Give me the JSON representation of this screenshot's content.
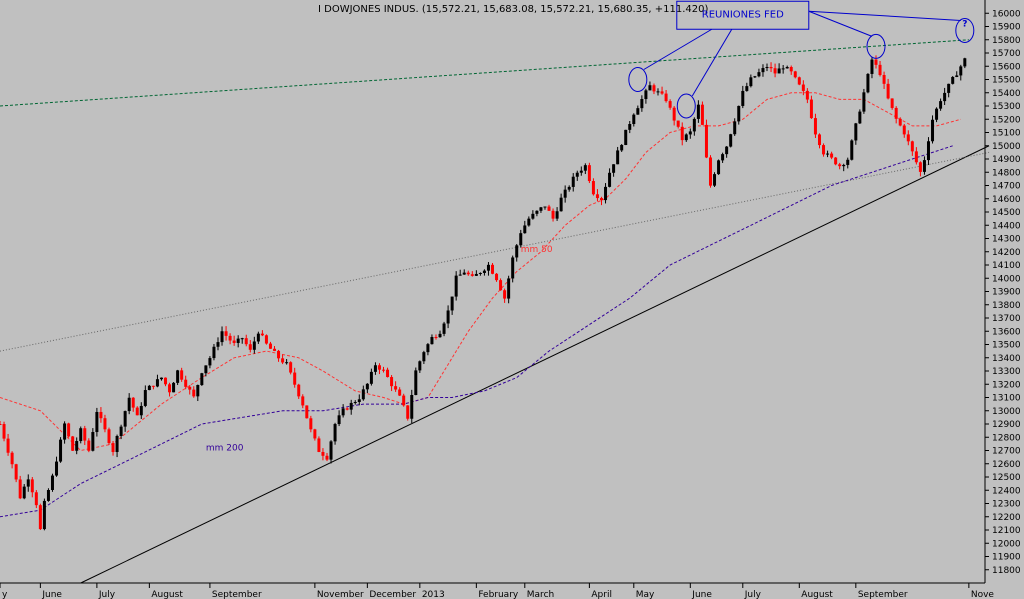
{
  "header": {
    "title": "I DOWJONES INDUS. (15,572.21, 15,683.08, 15,572.21, 15,680.35, +111.420)"
  },
  "chart_data": {
    "type": "candlestick",
    "title": "I DOWJONES INDUS.",
    "ohlc_last": {
      "open": 15572.21,
      "high": 15683.08,
      "low": 15572.21,
      "close": 15680.35,
      "change": 111.42
    },
    "ylim": [
      11700,
      16100
    ],
    "y_ticks": [
      11800,
      11900,
      12000,
      12100,
      12200,
      12300,
      12400,
      12500,
      12600,
      12700,
      12800,
      12900,
      13000,
      13100,
      13200,
      13300,
      13400,
      13500,
      13600,
      13700,
      13800,
      13900,
      14000,
      14100,
      14200,
      14300,
      14400,
      14500,
      14600,
      14700,
      14800,
      14900,
      15000,
      15100,
      15200,
      15300,
      15400,
      15500,
      15600,
      15700,
      15800,
      15900,
      16000
    ],
    "x_labels": [
      {
        "label": "y",
        "t": 0
      },
      {
        "label": "June",
        "t": 10
      },
      {
        "label": "July",
        "t": 24
      },
      {
        "label": "August",
        "t": 37
      },
      {
        "label": "September",
        "t": 52
      },
      {
        "label": "November",
        "t": 78
      },
      {
        "label": "December",
        "t": 91
      },
      {
        "label": "2013",
        "t": 104
      },
      {
        "label": "February",
        "t": 118
      },
      {
        "label": "March",
        "t": 130
      },
      {
        "label": "April",
        "t": 146
      },
      {
        "label": "May",
        "t": 157
      },
      {
        "label": "June",
        "t": 171
      },
      {
        "label": "July",
        "t": 184
      },
      {
        "label": "August",
        "t": 198
      },
      {
        "label": "September",
        "t": 212
      },
      {
        "label": "Nove",
        "t": 240
      }
    ],
    "price_path": [
      [
        0,
        12900
      ],
      [
        3,
        12600
      ],
      [
        5,
        12350
      ],
      [
        7,
        12500
      ],
      [
        9,
        12300
      ],
      [
        10,
        12100
      ],
      [
        11,
        12300
      ],
      [
        13,
        12500
      ],
      [
        16,
        12900
      ],
      [
        18,
        12700
      ],
      [
        20,
        12850
      ],
      [
        22,
        12700
      ],
      [
        24,
        13000
      ],
      [
        26,
        12850
      ],
      [
        28,
        12700
      ],
      [
        30,
        12900
      ],
      [
        32,
        13100
      ],
      [
        34,
        12950
      ],
      [
        36,
        13150
      ],
      [
        38,
        13200
      ],
      [
        40,
        13250
      ],
      [
        42,
        13150
      ],
      [
        44,
        13300
      ],
      [
        46,
        13200
      ],
      [
        48,
        13100
      ],
      [
        50,
        13300
      ],
      [
        52,
        13400
      ],
      [
        55,
        13600
      ],
      [
        58,
        13500
      ],
      [
        60,
        13550
      ],
      [
        62,
        13450
      ],
      [
        64,
        13600
      ],
      [
        66,
        13500
      ],
      [
        69,
        13400
      ],
      [
        71,
        13350
      ],
      [
        73,
        13200
      ],
      [
        75,
        13050
      ],
      [
        77,
        12850
      ],
      [
        79,
        12700
      ],
      [
        81,
        12650
      ],
      [
        83,
        12900
      ],
      [
        85,
        13000
      ],
      [
        87,
        13050
      ],
      [
        89,
        13100
      ],
      [
        91,
        13200
      ],
      [
        93,
        13350
      ],
      [
        95,
        13300
      ],
      [
        97,
        13200
      ],
      [
        99,
        13100
      ],
      [
        101,
        12950
      ],
      [
        103,
        13300
      ],
      [
        105,
        13450
      ],
      [
        107,
        13550
      ],
      [
        109,
        13600
      ],
      [
        111,
        13750
      ],
      [
        113,
        14000
      ],
      [
        115,
        14050
      ],
      [
        117,
        14000
      ],
      [
        119,
        14050
      ],
      [
        121,
        14100
      ],
      [
        123,
        14000
      ],
      [
        125,
        13850
      ],
      [
        127,
        14150
      ],
      [
        129,
        14350
      ],
      [
        131,
        14450
      ],
      [
        133,
        14500
      ],
      [
        135,
        14550
      ],
      [
        137,
        14450
      ],
      [
        139,
        14600
      ],
      [
        141,
        14700
      ],
      [
        143,
        14800
      ],
      [
        145,
        14850
      ],
      [
        147,
        14650
      ],
      [
        149,
        14600
      ],
      [
        151,
        14800
      ],
      [
        153,
        14950
      ],
      [
        155,
        15100
      ],
      [
        157,
        15250
      ],
      [
        159,
        15350
      ],
      [
        161,
        15450
      ],
      [
        163,
        15400
      ],
      [
        165,
        15350
      ],
      [
        167,
        15200
      ],
      [
        169,
        15050
      ],
      [
        171,
        15100
      ],
      [
        173,
        15300
      ],
      [
        174,
        15150
      ],
      [
        175,
        14900
      ],
      [
        176,
        14700
      ],
      [
        178,
        14900
      ],
      [
        180,
        15000
      ],
      [
        182,
        15200
      ],
      [
        184,
        15400
      ],
      [
        186,
        15500
      ],
      [
        188,
        15550
      ],
      [
        190,
        15600
      ],
      [
        192,
        15550
      ],
      [
        194,
        15600
      ],
      [
        196,
        15550
      ],
      [
        198,
        15450
      ],
      [
        200,
        15350
      ],
      [
        202,
        15100
      ],
      [
        204,
        14950
      ],
      [
        206,
        14900
      ],
      [
        208,
        14850
      ],
      [
        210,
        14900
      ],
      [
        212,
        15150
      ],
      [
        214,
        15400
      ],
      [
        216,
        15650
      ],
      [
        218,
        15550
      ],
      [
        220,
        15350
      ],
      [
        222,
        15200
      ],
      [
        224,
        15100
      ],
      [
        226,
        14950
      ],
      [
        228,
        14800
      ],
      [
        229,
        14900
      ],
      [
        231,
        15200
      ],
      [
        233,
        15350
      ],
      [
        235,
        15450
      ],
      [
        237,
        15550
      ],
      [
        239,
        15650
      ]
    ],
    "series": [
      {
        "name": "mm 50",
        "color": "#ff3333",
        "points": [
          [
            0,
            13100
          ],
          [
            10,
            13000
          ],
          [
            20,
            12700
          ],
          [
            28,
            12750
          ],
          [
            40,
            13050
          ],
          [
            50,
            13250
          ],
          [
            58,
            13400
          ],
          [
            66,
            13450
          ],
          [
            74,
            13400
          ],
          [
            80,
            13300
          ],
          [
            88,
            13150
          ],
          [
            95,
            13100
          ],
          [
            100,
            13050
          ],
          [
            106,
            13100
          ],
          [
            110,
            13300
          ],
          [
            116,
            13600
          ],
          [
            122,
            13850
          ],
          [
            128,
            14050
          ],
          [
            134,
            14200
          ],
          [
            140,
            14400
          ],
          [
            146,
            14550
          ],
          [
            150,
            14600
          ],
          [
            155,
            14750
          ],
          [
            160,
            14950
          ],
          [
            166,
            15100
          ],
          [
            172,
            15150
          ],
          [
            178,
            15150
          ],
          [
            184,
            15200
          ],
          [
            190,
            15350
          ],
          [
            196,
            15400
          ],
          [
            202,
            15400
          ],
          [
            208,
            15350
          ],
          [
            214,
            15350
          ],
          [
            220,
            15250
          ],
          [
            226,
            15150
          ],
          [
            232,
            15150
          ],
          [
            238,
            15200
          ]
        ]
      },
      {
        "name": "mm 200",
        "color": "#330099",
        "points": [
          [
            0,
            12200
          ],
          [
            10,
            12250
          ],
          [
            20,
            12450
          ],
          [
            30,
            12600
          ],
          [
            40,
            12750
          ],
          [
            50,
            12900
          ],
          [
            60,
            12950
          ],
          [
            70,
            13000
          ],
          [
            80,
            13000
          ],
          [
            90,
            13050
          ],
          [
            100,
            13050
          ],
          [
            106,
            13100
          ],
          [
            112,
            13100
          ],
          [
            120,
            13150
          ],
          [
            128,
            13250
          ],
          [
            136,
            13450
          ],
          [
            146,
            13650
          ],
          [
            156,
            13850
          ],
          [
            166,
            14100
          ],
          [
            176,
            14250
          ],
          [
            186,
            14400
          ],
          [
            196,
            14550
          ],
          [
            206,
            14700
          ],
          [
            216,
            14800
          ],
          [
            226,
            14900
          ],
          [
            236,
            15000
          ]
        ]
      }
    ],
    "trendlines": [
      {
        "style": "solid",
        "color": "#000000",
        "from": [
          20,
          11700
        ],
        "to": [
          245,
          15000
        ]
      },
      {
        "style": "dotted",
        "color": "#666666",
        "from": [
          0,
          13450
        ],
        "to": [
          245,
          14950
        ]
      },
      {
        "style": "dashed",
        "color": "#006633",
        "from": [
          0,
          15300
        ],
        "to": [
          240,
          15800
        ]
      }
    ],
    "annotations": [
      {
        "label": "mm 50",
        "t": 129,
        "y": 14200,
        "color": "#ff3333"
      },
      {
        "label": "mm 200",
        "t": 51,
        "y": 12700,
        "color": "#330099"
      },
      {
        "label": "REUNIONES FED",
        "t": 184,
        "y": 16000,
        "color": "#0000cc"
      },
      {
        "label": "?",
        "t": 239,
        "y": 15900,
        "color": "#0000cc"
      }
    ],
    "fed_circles": [
      {
        "t": 158,
        "y": 15500
      },
      {
        "t": 170,
        "y": 15300
      },
      {
        "t": 217,
        "y": 15750
      },
      {
        "t": 239,
        "y": 15870
      }
    ],
    "grid": false
  }
}
